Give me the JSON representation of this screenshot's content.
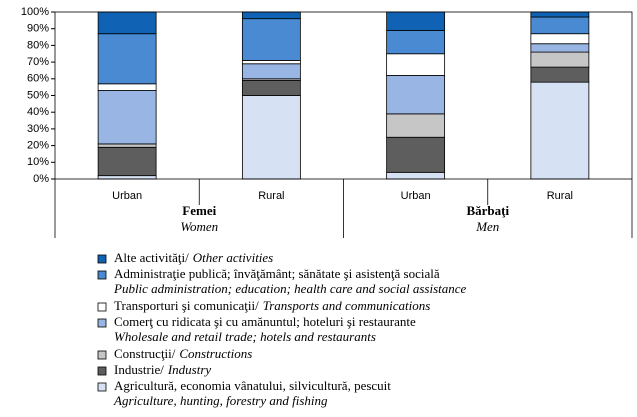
{
  "chart_data": {
    "type": "stacked_bar",
    "categories": [
      "Urban",
      "Rural",
      "Urban",
      "Rural"
    ],
    "groups": [
      {
        "name": "Femei",
        "name_en": "Women"
      },
      {
        "name": "Bărbaţi",
        "name_en": "Men"
      }
    ],
    "series": [
      {
        "name": "Agricultură, economia vânatului, silvicultură, pescuit",
        "name_en": "Agriculture, hunting, forestry and fishing",
        "color": "#d6e1f4",
        "values": [
          2,
          50,
          4,
          58
        ]
      },
      {
        "name": "Industrie/",
        "name_en": "Industry",
        "color": "#5e5e5e",
        "values": [
          17,
          9,
          21,
          9
        ]
      },
      {
        "name": "Construcţii/",
        "name_en": "Constructions",
        "color": "#c6c6c6",
        "values": [
          2,
          1,
          14,
          9
        ]
      },
      {
        "name": "Comerţ cu ridicata şi cu amănuntul; hoteluri şi restaurante",
        "name_en": "Wholesale and retail trade; hotels and restaurants",
        "color": "#98b5e4",
        "values": [
          32,
          9,
          23,
          5
        ]
      },
      {
        "name": "Transporturi şi comunicaţii/",
        "name_en": "Transports and communications",
        "color": "#ffffff",
        "values": [
          4,
          2,
          13,
          6
        ]
      },
      {
        "name": "Administraţie publică; învăţământ; sănătate şi asistenţă socială",
        "name_en": "Public administration; education; health care and social assistance",
        "color": "#4a8ad2",
        "values": [
          30,
          25,
          14,
          10
        ]
      },
      {
        "name": "Alte activităţi/",
        "name_en": "Other activities",
        "color": "#1063b4",
        "values": [
          13,
          4,
          11,
          3
        ]
      }
    ],
    "ylim": [
      0,
      100
    ],
    "yticks": [
      {
        "value": 0,
        "label": "0%"
      },
      {
        "value": 10,
        "label": "10%"
      },
      {
        "value": 20,
        "label": "20%"
      },
      {
        "value": 30,
        "label": "30%"
      },
      {
        "value": 40,
        "label": "40%"
      },
      {
        "value": 50,
        "label": "50%"
      },
      {
        "value": 60,
        "label": "60%"
      },
      {
        "value": 70,
        "label": "70%"
      },
      {
        "value": 80,
        "label": "80%"
      },
      {
        "value": 90,
        "label": "90%"
      },
      {
        "value": 100,
        "label": "100%"
      }
    ]
  }
}
